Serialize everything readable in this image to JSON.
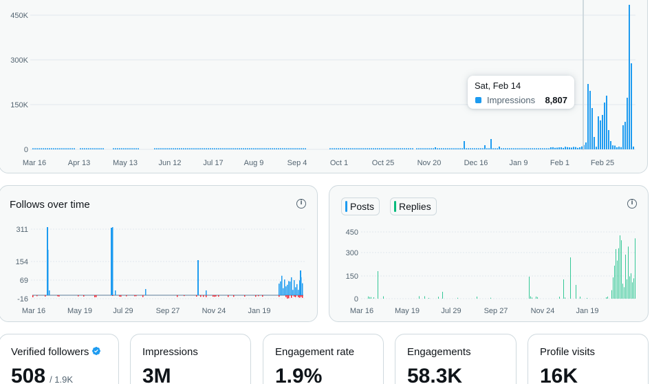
{
  "impressions_chart": {
    "y_ticks": [
      "450K",
      "300K",
      "150K",
      "0"
    ],
    "x_ticks": [
      "Mar 16",
      "Apr 13",
      "May 13",
      "Jun 12",
      "Jul 17",
      "Aug 9",
      "Sep 4",
      "Oct 1",
      "Oct 25",
      "Nov 20",
      "Dec 16",
      "Jan 9",
      "Feb 1",
      "Feb 25"
    ],
    "tooltip": {
      "date": "Sat, Feb 14",
      "label": "Impressions",
      "value": "8,807"
    }
  },
  "follows_chart": {
    "title": "Follows over time",
    "y_ticks": [
      "311",
      "154",
      "69",
      "-16"
    ],
    "x_ticks": [
      "Mar 16",
      "May 19",
      "Jul 29",
      "Sep 27",
      "Nov 24",
      "Jan 19"
    ]
  },
  "posts_chart": {
    "legend": [
      {
        "label": "Posts",
        "color": "#1d9bf0"
      },
      {
        "label": "Replies",
        "color": "#00ba7c"
      }
    ],
    "y_ticks": [
      "450",
      "300",
      "150",
      "0"
    ],
    "x_ticks": [
      "Mar 16",
      "May 19",
      "Jul 29",
      "Sep 27",
      "Nov 24",
      "Jan 19"
    ]
  },
  "stats": [
    {
      "label": "Verified followers",
      "value": "508",
      "sub": "/ 1.9K"
    },
    {
      "label": "Impressions",
      "value": "3M"
    },
    {
      "label": "Engagement rate",
      "value": "1.9%"
    },
    {
      "label": "Engagements",
      "value": "58.3K"
    },
    {
      "label": "Profile visits",
      "value": "16K"
    }
  ],
  "colors": {
    "blue": "#1d9bf0",
    "green": "#00ba7c",
    "red": "#f4212e",
    "border": "#cfd9de"
  },
  "icons": {
    "info": "info-icon",
    "verified": "verified-badge-icon"
  }
}
